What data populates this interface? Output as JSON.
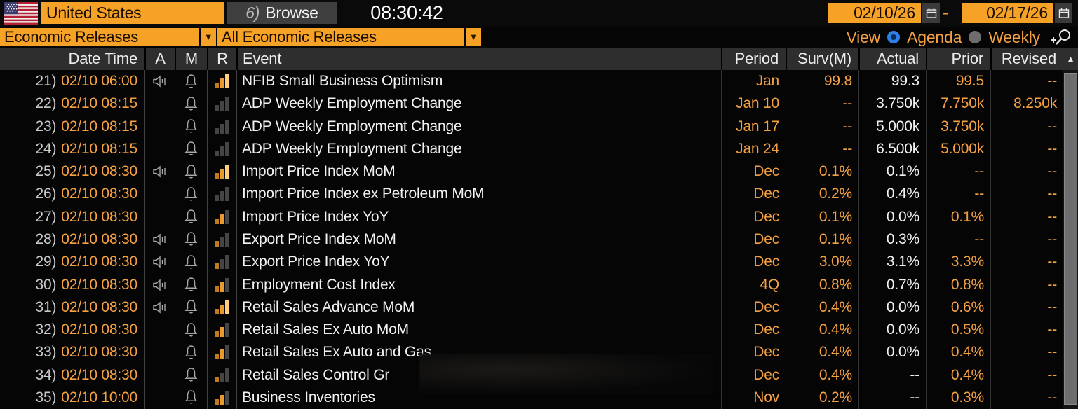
{
  "toolbar": {
    "country": "United States",
    "browse_prefix": "6)",
    "browse_label": "Browse",
    "clock": "08:30:42",
    "date_from": "02/10/26",
    "date_to": "02/17/26",
    "range_separator": "-"
  },
  "filters": {
    "category": "Economic Releases",
    "subcategory": "All Economic Releases",
    "view_label": "View",
    "options": [
      {
        "label": "Agenda",
        "selected": true
      },
      {
        "label": "Weekly",
        "selected": false
      }
    ]
  },
  "table": {
    "headers": [
      "Date Time",
      "A",
      "M",
      "R",
      "Event",
      "Period",
      "Surv(M)",
      "Actual",
      "Prior",
      "Revised"
    ],
    "rows": [
      {
        "num": "21)",
        "datetime": "02/10 06:00",
        "alert": true,
        "monitor": true,
        "relevance": 3,
        "event": "NFIB Small Business Optimism",
        "period": "Jan",
        "surv": "99.8",
        "actual": "99.3",
        "prior": "99.5",
        "revised": "--"
      },
      {
        "num": "22)",
        "datetime": "02/10 08:15",
        "alert": false,
        "monitor": true,
        "relevance": 0,
        "event": "ADP Weekly Employment Change",
        "period": "Jan 10",
        "surv": "--",
        "actual": "3.750k",
        "prior": "7.750k",
        "revised": "8.250k"
      },
      {
        "num": "23)",
        "datetime": "02/10 08:15",
        "alert": false,
        "monitor": true,
        "relevance": 0,
        "event": "ADP Weekly Employment Change",
        "period": "Jan 17",
        "surv": "--",
        "actual": "5.000k",
        "prior": "3.750k",
        "revised": "--"
      },
      {
        "num": "24)",
        "datetime": "02/10 08:15",
        "alert": false,
        "monitor": true,
        "relevance": 0,
        "event": "ADP Weekly Employment Change",
        "period": "Jan 24",
        "surv": "--",
        "actual": "6.500k",
        "prior": "5.000k",
        "revised": "--"
      },
      {
        "num": "25)",
        "datetime": "02/10 08:30",
        "alert": true,
        "monitor": true,
        "relevance": 3,
        "event": "Import Price Index MoM",
        "period": "Dec",
        "surv": "0.1%",
        "actual": "0.1%",
        "prior": "--",
        "revised": "--"
      },
      {
        "num": "26)",
        "datetime": "02/10 08:30",
        "alert": false,
        "monitor": true,
        "relevance": 0,
        "event": "Import Price Index ex Petroleum MoM",
        "period": "Dec",
        "surv": "0.2%",
        "actual": "0.4%",
        "prior": "--",
        "revised": "--"
      },
      {
        "num": "27)",
        "datetime": "02/10 08:30",
        "alert": false,
        "monitor": true,
        "relevance": 2,
        "event": "Import Price Index YoY",
        "period": "Dec",
        "surv": "0.1%",
        "actual": "0.0%",
        "prior": "0.1%",
        "revised": "--"
      },
      {
        "num": "28)",
        "datetime": "02/10 08:30",
        "alert": true,
        "monitor": true,
        "relevance": 1,
        "event": "Export Price Index MoM",
        "period": "Dec",
        "surv": "0.1%",
        "actual": "0.3%",
        "prior": "--",
        "revised": "--"
      },
      {
        "num": "29)",
        "datetime": "02/10 08:30",
        "alert": true,
        "monitor": true,
        "relevance": 1,
        "event": "Export Price Index YoY",
        "period": "Dec",
        "surv": "3.0%",
        "actual": "3.1%",
        "prior": "3.3%",
        "revised": "--"
      },
      {
        "num": "30)",
        "datetime": "02/10 08:30",
        "alert": true,
        "monitor": true,
        "relevance": 2,
        "event": "Employment Cost Index",
        "period": "4Q",
        "surv": "0.8%",
        "actual": "0.7%",
        "prior": "0.8%",
        "revised": "--"
      },
      {
        "num": "31)",
        "datetime": "02/10 08:30",
        "alert": true,
        "monitor": true,
        "relevance": 3,
        "event": "Retail Sales Advance MoM",
        "period": "Dec",
        "surv": "0.4%",
        "actual": "0.0%",
        "prior": "0.6%",
        "revised": "--"
      },
      {
        "num": "32)",
        "datetime": "02/10 08:30",
        "alert": false,
        "monitor": true,
        "relevance": 2,
        "event": "Retail Sales Ex Auto MoM",
        "period": "Dec",
        "surv": "0.4%",
        "actual": "0.0%",
        "prior": "0.5%",
        "revised": "--"
      },
      {
        "num": "33)",
        "datetime": "02/10 08:30",
        "alert": false,
        "monitor": true,
        "relevance": 2,
        "event": "Retail Sales Ex Auto and Gas",
        "period": "Dec",
        "surv": "0.4%",
        "actual": "0.0%",
        "prior": "0.4%",
        "revised": "--"
      },
      {
        "num": "34)",
        "datetime": "02/10 08:30",
        "alert": false,
        "monitor": true,
        "relevance": 1,
        "event": "Retail Sales Control Gr",
        "period": "Dec",
        "surv": "0.4%",
        "actual": "--",
        "prior": "0.4%",
        "revised": "--"
      },
      {
        "num": "35)",
        "datetime": "02/10 10:00",
        "alert": false,
        "monitor": true,
        "relevance": 2,
        "event": "Business Inventories",
        "period": "Nov",
        "surv": "0.2%",
        "actual": "--",
        "prior": "0.3%",
        "revised": "--"
      }
    ]
  },
  "colors": {
    "accent_field": "#f6a226",
    "orange_text": "#f5a142",
    "actual_text": "#f2f2f2",
    "header_bg": "#2e2e2e",
    "radio_selected": "#2f7fe8",
    "bar_lit": [
      "#c27a1f",
      "#e89a2e",
      "#ffcf7a"
    ],
    "bar_unlit": "#454545"
  }
}
